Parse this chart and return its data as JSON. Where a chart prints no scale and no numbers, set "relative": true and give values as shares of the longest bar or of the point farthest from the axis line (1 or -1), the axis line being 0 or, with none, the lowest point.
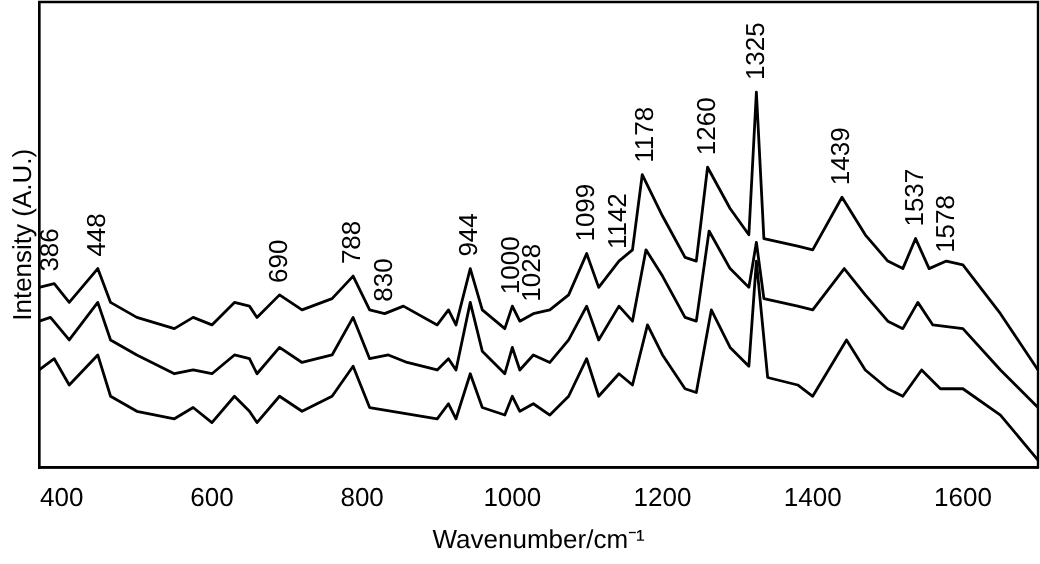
{
  "chart_data": {
    "type": "line",
    "relative": true,
    "xlabel": "Wavenumber/cm⁻¹",
    "ylabel": "Intensity (A.U.)",
    "xlim": [
      370,
      1700
    ],
    "xticks": [
      400,
      600,
      800,
      1000,
      1200,
      1400,
      1600
    ],
    "grid": false,
    "legend": false,
    "marker": "none",
    "line_style": "solid",
    "series": [
      {
        "color": "#000000",
        "x": [
          370,
          390,
          410,
          448,
          465,
          500,
          550,
          575,
          600,
          630,
          650,
          660,
          690,
          720,
          760,
          788,
          810,
          830,
          855,
          900,
          915,
          925,
          944,
          960,
          990,
          1000,
          1010,
          1028,
          1050,
          1075,
          1099,
          1115,
          1142,
          1160,
          1173,
          1200,
          1230,
          1245,
          1260,
          1290,
          1315,
          1325,
          1335,
          1380,
          1400,
          1439,
          1470,
          1500,
          1520,
          1537,
          1555,
          1578,
          1600,
          1650,
          1700
        ],
        "values": [
          0.48,
          0.49,
          0.44,
          0.53,
          0.44,
          0.4,
          0.37,
          0.4,
          0.38,
          0.44,
          0.43,
          0.4,
          0.46,
          0.42,
          0.45,
          0.51,
          0.42,
          0.41,
          0.43,
          0.38,
          0.42,
          0.38,
          0.53,
          0.42,
          0.37,
          0.43,
          0.39,
          0.41,
          0.42,
          0.46,
          0.57,
          0.48,
          0.55,
          0.58,
          0.78,
          0.67,
          0.56,
          0.55,
          0.8,
          0.69,
          0.62,
          1.0,
          0.61,
          0.59,
          0.58,
          0.72,
          0.62,
          0.55,
          0.53,
          0.61,
          0.53,
          0.55,
          0.54,
          0.41,
          0.26
        ]
      },
      {
        "color": "#000000",
        "x": [
          370,
          385,
          410,
          448,
          465,
          500,
          550,
          575,
          600,
          630,
          650,
          660,
          690,
          720,
          760,
          788,
          810,
          835,
          860,
          900,
          915,
          925,
          944,
          960,
          990,
          1000,
          1010,
          1028,
          1050,
          1075,
          1099,
          1115,
          1142,
          1160,
          1178,
          1200,
          1230,
          1245,
          1262,
          1290,
          1315,
          1325,
          1335,
          1380,
          1400,
          1442,
          1470,
          1500,
          1520,
          1540,
          1560,
          1600,
          1650,
          1700
        ],
        "values": [
          0.39,
          0.4,
          0.34,
          0.44,
          0.34,
          0.3,
          0.25,
          0.26,
          0.25,
          0.3,
          0.29,
          0.25,
          0.32,
          0.28,
          0.3,
          0.4,
          0.29,
          0.3,
          0.28,
          0.26,
          0.29,
          0.26,
          0.44,
          0.31,
          0.25,
          0.32,
          0.26,
          0.3,
          0.28,
          0.34,
          0.43,
          0.34,
          0.43,
          0.39,
          0.58,
          0.51,
          0.4,
          0.39,
          0.63,
          0.53,
          0.48,
          0.6,
          0.45,
          0.43,
          0.42,
          0.53,
          0.46,
          0.39,
          0.37,
          0.44,
          0.38,
          0.37,
          0.26,
          0.16
        ]
      },
      {
        "color": "#000000",
        "x": [
          370,
          390,
          410,
          448,
          465,
          500,
          550,
          575,
          600,
          630,
          650,
          660,
          690,
          720,
          760,
          788,
          810,
          840,
          900,
          915,
          925,
          944,
          960,
          990,
          1000,
          1010,
          1028,
          1050,
          1075,
          1099,
          1115,
          1142,
          1160,
          1180,
          1200,
          1230,
          1245,
          1265,
          1290,
          1315,
          1325,
          1340,
          1380,
          1400,
          1445,
          1470,
          1500,
          1520,
          1545,
          1570,
          1600,
          1650,
          1700
        ],
        "values": [
          0.26,
          0.29,
          0.22,
          0.3,
          0.19,
          0.15,
          0.13,
          0.16,
          0.12,
          0.19,
          0.15,
          0.12,
          0.19,
          0.15,
          0.19,
          0.27,
          0.16,
          0.15,
          0.13,
          0.17,
          0.13,
          0.25,
          0.16,
          0.14,
          0.19,
          0.15,
          0.17,
          0.14,
          0.19,
          0.29,
          0.19,
          0.25,
          0.22,
          0.38,
          0.3,
          0.21,
          0.2,
          0.42,
          0.32,
          0.27,
          0.55,
          0.24,
          0.22,
          0.19,
          0.34,
          0.26,
          0.21,
          0.19,
          0.26,
          0.21,
          0.21,
          0.14,
          0.02
        ]
      }
    ],
    "annotations": [
      {
        "text": "386",
        "x": 386,
        "y": 0.49
      },
      {
        "text": "448",
        "x": 448,
        "y": 0.53
      },
      {
        "text": "690",
        "x": 690,
        "y": 0.46
      },
      {
        "text": "788",
        "x": 788,
        "y": 0.51
      },
      {
        "text": "830",
        "x": 830,
        "y": 0.41
      },
      {
        "text": "944",
        "x": 944,
        "y": 0.53
      },
      {
        "text": "1000",
        "x": 1000,
        "y": 0.43
      },
      {
        "text": "1028",
        "x": 1028,
        "y": 0.41
      },
      {
        "text": "1099",
        "x": 1099,
        "y": 0.57
      },
      {
        "text": "1142",
        "x": 1142,
        "y": 0.55
      },
      {
        "text": "1178",
        "x": 1178,
        "y": 0.78
      },
      {
        "text": "1260",
        "x": 1260,
        "y": 0.8
      },
      {
        "text": "1325",
        "x": 1325,
        "y": 1.0
      },
      {
        "text": "1439",
        "x": 1439,
        "y": 0.72
      },
      {
        "text": "1537",
        "x": 1537,
        "y": 0.61
      },
      {
        "text": "1578",
        "x": 1578,
        "y": 0.54
      }
    ]
  }
}
